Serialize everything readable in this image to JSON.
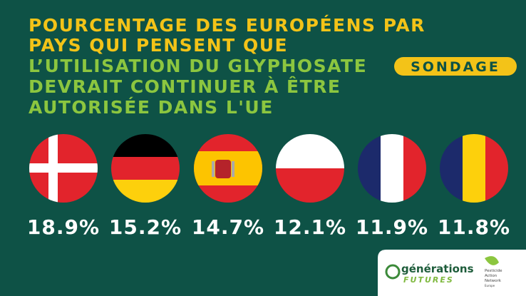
{
  "header": {
    "title_lines_highlight": [
      "POURCENTAGE DES EUROPÉENS PAR",
      "PAYS QUI PENSENT QUE"
    ],
    "title_lines": [
      "L’UTILISATION DU GLYPHOSATE",
      "DEVRAIT CONTINUER À ÊTRE",
      "AUTORISÉE DANS L'UE"
    ],
    "badge": "SONDAGE"
  },
  "items": [
    {
      "value": "18.9%"
    },
    {
      "value": "15.2%"
    },
    {
      "value": "14.7%"
    },
    {
      "value": "12.1%"
    },
    {
      "value": "11.9%"
    },
    {
      "value": "11.8%"
    }
  ],
  "footer": {
    "logo1_line1": "générations",
    "logo1_line2": "FUTURES",
    "logo2_lines": [
      "Pesticide",
      "Action",
      "Network",
      "Europe"
    ]
  }
}
